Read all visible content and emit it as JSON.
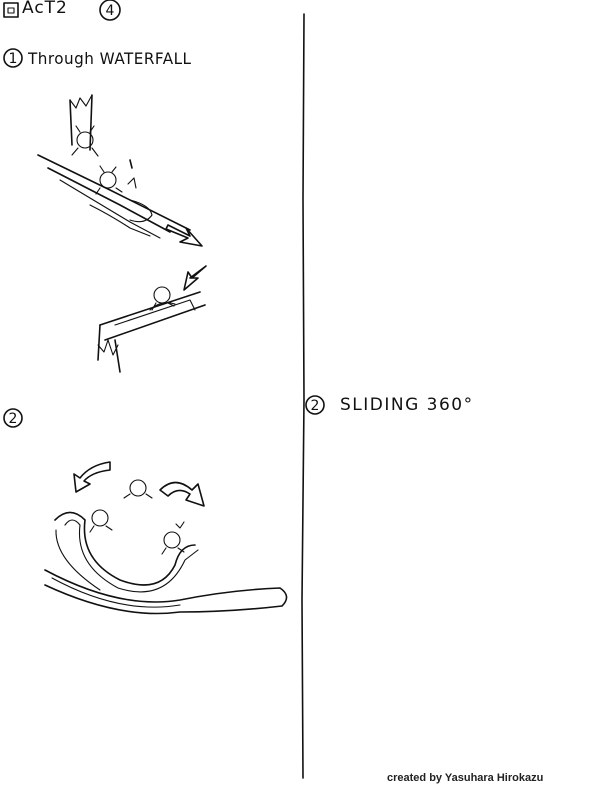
{
  "header": {
    "title": "AcT2",
    "page_number": "4"
  },
  "left_sections": [
    {
      "number": "1",
      "label": "Through WATERFALL"
    },
    {
      "number": "2",
      "label": ""
    }
  ],
  "right_section": {
    "number": "2",
    "label": "SLIDING  360°"
  },
  "credit": "created by Yasuhara Hirokazu"
}
